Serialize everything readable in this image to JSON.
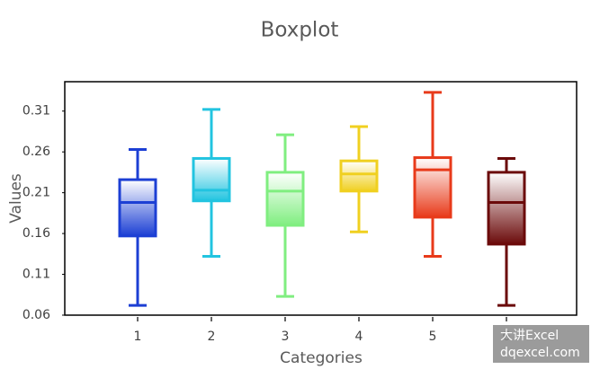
{
  "chart_data": {
    "type": "boxplot",
    "title": "Boxplot",
    "x_label": "Categories",
    "y_label": "Values",
    "categories": [
      "1",
      "2",
      "3",
      "4",
      "5",
      "6"
    ],
    "boxes": [
      {
        "whislo": 0.072,
        "q1": 0.157,
        "med": 0.198,
        "q3": 0.226,
        "whishi": 0.263
      },
      {
        "whislo": 0.132,
        "q1": 0.2,
        "med": 0.213,
        "q3": 0.252,
        "whishi": 0.312
      },
      {
        "whislo": 0.083,
        "q1": 0.17,
        "med": 0.212,
        "q3": 0.235,
        "whishi": 0.281
      },
      {
        "whislo": 0.162,
        "q1": 0.212,
        "med": 0.233,
        "q3": 0.249,
        "whishi": 0.291
      },
      {
        "whislo": 0.132,
        "q1": 0.18,
        "med": 0.238,
        "q3": 0.253,
        "whishi": 0.333
      },
      {
        "whislo": 0.072,
        "q1": 0.147,
        "med": 0.198,
        "q3": 0.235,
        "whishi": 0.252
      }
    ],
    "colors": [
      "#1c3fd4",
      "#22c4e0",
      "#80ee80",
      "#f0d020",
      "#e83a1a",
      "#6b0a0a"
    ],
    "ylim": [
      0.06,
      0.346
    ],
    "yticks": [
      0.06,
      0.11,
      0.16,
      0.21,
      0.26,
      0.31
    ]
  },
  "watermark": [
    "大讲Excel",
    "dqexcel.com"
  ]
}
